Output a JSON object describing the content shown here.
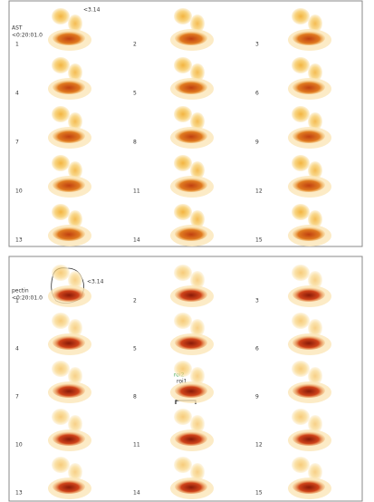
{
  "panels": [
    {
      "label": "AST",
      "scale": "<3.14",
      "time": "<0:20:01.0",
      "frames": [
        "1",
        "2",
        "3",
        "4",
        "5",
        "6",
        "7",
        "8",
        "9",
        "10",
        "11",
        "12",
        "13",
        "14",
        "15"
      ]
    },
    {
      "label": "pectin",
      "scale": "<3.14",
      "time": "<0:20:01.0",
      "frames": [
        "1",
        "2",
        "3",
        "4",
        "5",
        "6",
        "7",
        "8",
        "9",
        "10",
        "11",
        "12",
        "13",
        "14",
        "15"
      ],
      "annotations": [
        "roi2",
        "roi1"
      ]
    }
  ]
}
